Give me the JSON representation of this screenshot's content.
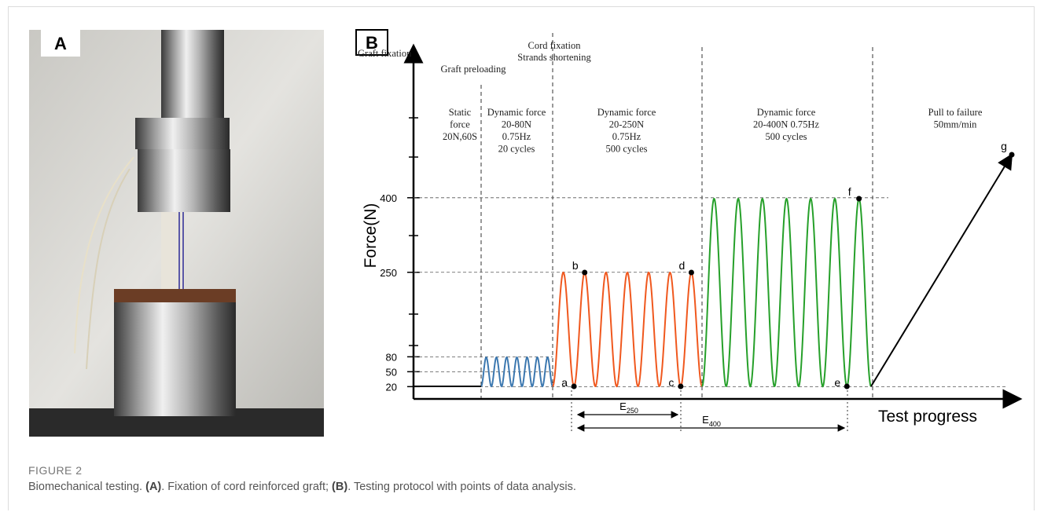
{
  "figure": {
    "label": "FIGURE 2",
    "caption": [
      "Biomechanical testing. ",
      "(A)",
      ". Fixation of cord reinforced graft; ",
      "(B)",
      ". Testing protocol with points of data analysis."
    ]
  },
  "panel_a": {
    "label": "A"
  },
  "panel_b": {
    "label": "B",
    "y_axis_title": "Force(N)",
    "x_axis_title": "Test progress",
    "yticks": [
      20,
      50,
      80,
      250,
      400
    ],
    "headers": [
      "Graft fixation",
      "Graft preloading",
      "Cord fixation",
      "Strands shortening"
    ],
    "phases": [
      [
        "Static",
        "force",
        "20N,60S"
      ],
      [
        "Dynamic force",
        "20-80N",
        "0.75Hz",
        "20 cycles"
      ],
      [
        "Dynamic force",
        "20-250N",
        "0.75Hz",
        "500 cycles"
      ],
      [
        "Dynamic force",
        "20-400N 0.75Hz",
        "500 cycles"
      ],
      [
        "Pull to failure",
        "50mm/min"
      ]
    ],
    "points": [
      "a",
      "b",
      "c",
      "d",
      "e",
      "f",
      "g"
    ],
    "intervals": [
      {
        "symbol": "E",
        "subscript": "250"
      },
      {
        "symbol": "E",
        "subscript": "400"
      }
    ]
  }
}
